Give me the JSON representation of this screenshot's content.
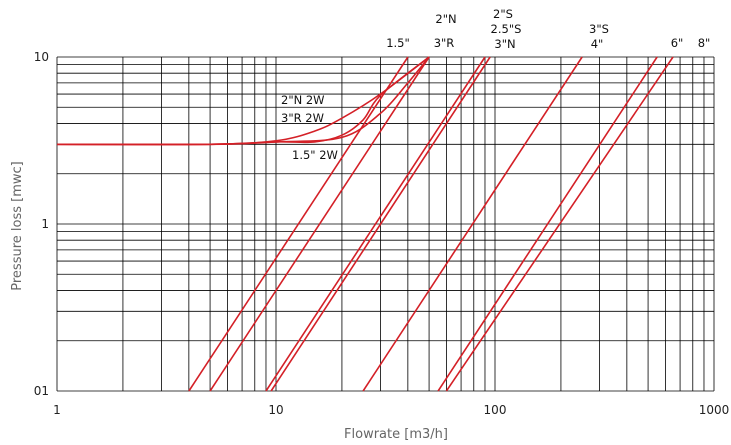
{
  "chart_data": {
    "type": "line",
    "xscale": "log",
    "yscale": "log",
    "xlabel": "Flowrate [m3/h]",
    "ylabel": "Pressure loss [mwc]",
    "xlim": [
      1,
      1000
    ],
    "ylim": [
      0.1,
      10
    ],
    "x_tick_labels": [
      "1",
      "10",
      "100",
      "1000"
    ],
    "y_tick_labels": [
      "01",
      "1",
      "10"
    ],
    "grid": true,
    "series_color": "#d42027",
    "annotations": [
      {
        "text": "1.5\""
      },
      {
        "text": "2\"N"
      },
      {
        "text": "3\"R"
      },
      {
        "text": "2\"S"
      },
      {
        "text": "2.5\"S"
      },
      {
        "text": "3\"N"
      },
      {
        "text": "3\"S"
      },
      {
        "text": "4\""
      },
      {
        "text": "6\""
      },
      {
        "text": "8\""
      },
      {
        "text": "2\"N 2W"
      },
      {
        "text": "3\"R 2W"
      },
      {
        "text": "1.5\" 2W"
      }
    ],
    "series": [
      {
        "points": [
          [
            4,
            0.1
          ],
          [
            40,
            10
          ]
        ]
      },
      {
        "points": [
          [
            5,
            0.1
          ],
          [
            50,
            10
          ]
        ]
      },
      {
        "points": [
          [
            9,
            0.1
          ],
          [
            90,
            10
          ]
        ]
      },
      {
        "points": [
          [
            9.5,
            0.1
          ],
          [
            95,
            10
          ]
        ]
      },
      {
        "points": [
          [
            25,
            0.1
          ],
          [
            250,
            10
          ]
        ]
      },
      {
        "points": [
          [
            55,
            0.1
          ],
          [
            550,
            10
          ]
        ]
      },
      {
        "points": [
          [
            60,
            0.1
          ],
          [
            650,
            10
          ]
        ]
      },
      {
        "points": [
          [
            1,
            3.0
          ],
          [
            5,
            3.0
          ],
          [
            10,
            3.1
          ],
          [
            20,
            3.3
          ],
          [
            30,
            4.6
          ],
          [
            40,
            7.0
          ],
          [
            50,
            10
          ]
        ]
      },
      {
        "points": [
          [
            1,
            3.0
          ],
          [
            5,
            3.0
          ],
          [
            10,
            3.15
          ],
          [
            15,
            3.6
          ],
          [
            20,
            4.3
          ],
          [
            30,
            6.0
          ],
          [
            50,
            10
          ]
        ]
      },
      {
        "points": [
          [
            1,
            3.0
          ],
          [
            5,
            3.0
          ],
          [
            10,
            3.1
          ],
          [
            15,
            3.1
          ],
          [
            20,
            3.4
          ],
          [
            25,
            4.2
          ],
          [
            30,
            5.9
          ],
          [
            50,
            10
          ]
        ]
      }
    ]
  }
}
